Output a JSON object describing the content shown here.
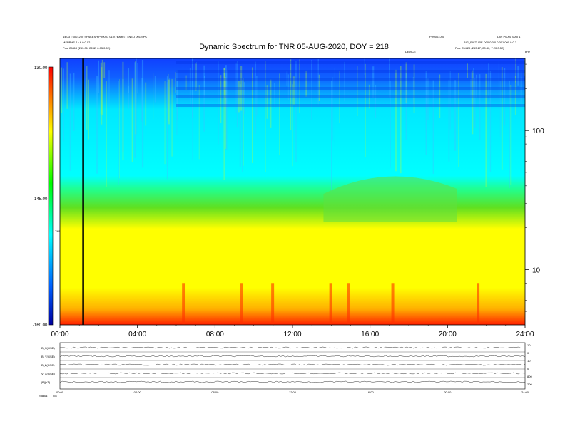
{
  "header": {
    "title": "Dynamic Spectrum for TNR 05-AUG-2020, DOY = 218",
    "left_line1": "14.03 • 6001200 SPACESHIP (0003 010) (Earth) • 4NEO 001 SPC",
    "left_line2": "MSPPHS 2 • 6 0 0 02",
    "left_line3": "Pos:  25419 (253.01, 2282, 6.05 0.52)",
    "right_top_a": "PR0003 A0",
    "right_top_b": "L3R P0001 0 A0 1",
    "right_line2": "BIG_PICTURE  D00 0 0 0 0 001 000 0 0 3",
    "right_line3": "Pos:  254.29 (253.27, 20.40, 7.20 0.52)",
    "device_label": "DEVICE",
    "khz_label": "kHz"
  },
  "colorbar": {
    "top_label": "-130.00",
    "mid_label": "-145.00",
    "bottom_label": "-160.00",
    "side_label": "TNR"
  },
  "chart_data": [
    {
      "type": "heatmap",
      "title": "Dynamic Spectrum for TNR 05-AUG-2020, DOY = 218",
      "x_tick_labels": [
        "00:00",
        "04:00",
        "08:00",
        "12:00",
        "16:00",
        "20:00",
        "24:00"
      ],
      "x_hours": [
        0,
        4,
        8,
        12,
        16,
        20,
        24
      ],
      "xlim": [
        0,
        24
      ],
      "y_scale": "log",
      "y_tick_labels": [
        "100",
        "10"
      ],
      "y_ticks": [
        100,
        10
      ],
      "ylim": [
        4,
        330
      ],
      "y_unit": "kHz",
      "color_scale": {
        "min": -160,
        "max": -130,
        "label": "TNR"
      },
      "bands": [
        {
          "from_khz": 4,
          "to_khz": 8,
          "color": "#ff6a00",
          "note": "red-orange"
        },
        {
          "from_khz": 8,
          "to_khz": 20,
          "color": "#ffff00"
        },
        {
          "from_khz": 20,
          "to_khz": 35,
          "color": "#3ad83a"
        },
        {
          "from_khz": 35,
          "to_khz": 230,
          "color": "#00ffff"
        },
        {
          "from_khz": 230,
          "to_khz": 330,
          "color": "#0040ff"
        }
      ],
      "marker_hour": 1.2
    },
    {
      "type": "line",
      "title": "",
      "x_tick_labels": [
        "00:00",
        "04:00",
        "08:00",
        "12:00",
        "16:00",
        "20:00",
        "24:00"
      ],
      "series_labels": [
        "B_X(GSE)",
        "B_Y(GSE)",
        "B_Z(GSE)",
        "V_X(GSE)",
        "|B|(nT)"
      ],
      "right_labels": [
        "10",
        "0",
        "10",
        "0",
        "800",
        "200"
      ]
    }
  ],
  "footer": {
    "label": "Status",
    "value": "0/8"
  }
}
